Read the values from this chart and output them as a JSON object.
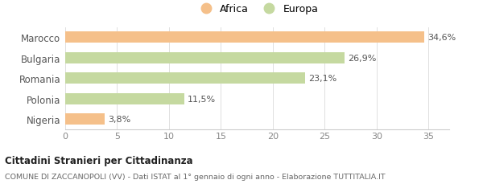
{
  "categories": [
    "Marocco",
    "Bulgaria",
    "Romania",
    "Polonia",
    "Nigeria"
  ],
  "values": [
    34.6,
    26.9,
    23.1,
    11.5,
    3.8
  ],
  "labels": [
    "34,6%",
    "26,9%",
    "23,1%",
    "11,5%",
    "3,8%"
  ],
  "bar_colors": [
    "#f5c08a",
    "#c5d9a0",
    "#c5d9a0",
    "#c5d9a0",
    "#f5c08a"
  ],
  "legend_items": [
    {
      "label": "Africa",
      "color": "#f5c08a"
    },
    {
      "label": "Europa",
      "color": "#c5d9a0"
    }
  ],
  "xlim": [
    0,
    37
  ],
  "xticks": [
    0,
    5,
    10,
    15,
    20,
    25,
    30,
    35
  ],
  "title_bold": "Cittadini Stranieri per Cittadinanza",
  "subtitle": "COMUNE DI ZACCANOPOLI (VV) - Dati ISTAT al 1° gennaio di ogni anno - Elaborazione TUTTITALIA.IT",
  "background_color": "#ffffff",
  "bar_height": 0.55
}
